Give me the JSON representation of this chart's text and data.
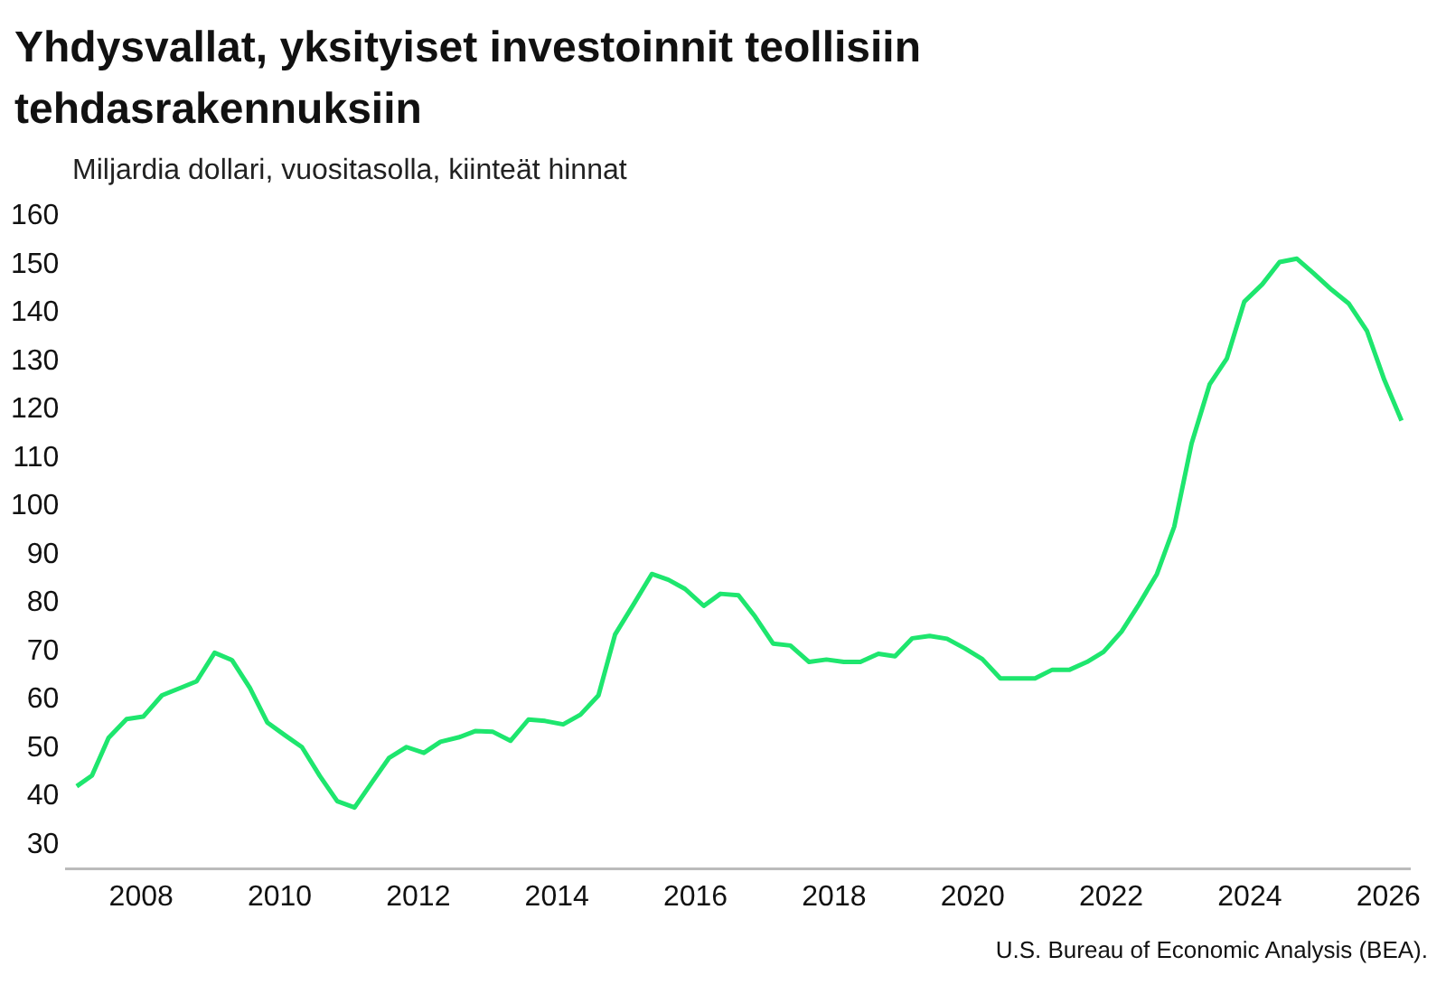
{
  "chart_data": {
    "type": "line",
    "title": "Yhdysvallat, yksityiset investoinnit teollisiin tehdasrakennuksiin",
    "subtitle": "Miljardia dollari, vuositasolla, kiinteät hinnat",
    "x": [
      2007.07,
      2007.29,
      2007.53,
      2007.79,
      2008.03,
      2008.3,
      2008.56,
      2008.8,
      2009.06,
      2009.31,
      2009.57,
      2009.82,
      2010.07,
      2010.32,
      2010.58,
      2010.83,
      2011.08,
      2011.33,
      2011.58,
      2011.83,
      2012.08,
      2012.32,
      2012.58,
      2012.82,
      2013.07,
      2013.33,
      2013.59,
      2013.83,
      2014.09,
      2014.34,
      2014.6,
      2014.84,
      2015.11,
      2015.37,
      2015.61,
      2015.85,
      2016.12,
      2016.36,
      2016.62,
      2016.86,
      2017.12,
      2017.37,
      2017.64,
      2017.89,
      2018.14,
      2018.38,
      2018.64,
      2018.88,
      2019.13,
      2019.38,
      2019.63,
      2019.89,
      2020.14,
      2020.4,
      2020.66,
      2020.9,
      2021.15,
      2021.4,
      2021.65,
      2021.89,
      2022.15,
      2022.4,
      2022.66,
      2022.91,
      2023.16,
      2023.42,
      2023.67,
      2023.92,
      2024.18,
      2024.43,
      2024.68,
      2024.92,
      2025.18,
      2025.43,
      2025.69,
      2025.94,
      2026.19
    ],
    "series": [
      {
        "color": "#1ee66e",
        "values": [
          42.1,
          44.3,
          52.1,
          56,
          56.5,
          60.9,
          62.4,
          63.8,
          69.7,
          68.2,
          62.4,
          55.3,
          52.7,
          50.2,
          44.2,
          39,
          37.7,
          42.9,
          48,
          50.2,
          49,
          51.3,
          52.2,
          53.5,
          53.4,
          51.5,
          55.9,
          55.6,
          54.9,
          56.9,
          60.9,
          73.5,
          79.8,
          86,
          84.8,
          82.9,
          79.4,
          81.9,
          81.6,
          77.2,
          71.6,
          71.2,
          67.8,
          68.3,
          67.8,
          67.8,
          69.5,
          69,
          72.7,
          73.2,
          72.6,
          70.6,
          68.4,
          64.4,
          64.4,
          64.4,
          66.2,
          66.2,
          67.8,
          69.9,
          74.1,
          79.7,
          86,
          95.8,
          113,
          125.2,
          130.6,
          142.3,
          145.9,
          150.5,
          151.2,
          148.2,
          144.8,
          141.9,
          136.3,
          126.2,
          117.7
        ]
      }
    ],
    "xlim": [
      2006.92,
      2026.31
    ],
    "xticks": [
      2008,
      2010,
      2012,
      2014,
      2016,
      2018,
      2020,
      2022,
      2024,
      2026
    ],
    "ylim": [
      25,
      160
    ],
    "yticks": [
      30,
      40,
      50,
      60,
      70,
      80,
      90,
      100,
      110,
      120,
      130,
      140,
      150,
      160
    ],
    "grid": false,
    "legend": false,
    "marker": "none",
    "line_style": "solid",
    "annotations": [
      "U.S. Bureau of Economic Analysis (BEA)."
    ]
  }
}
